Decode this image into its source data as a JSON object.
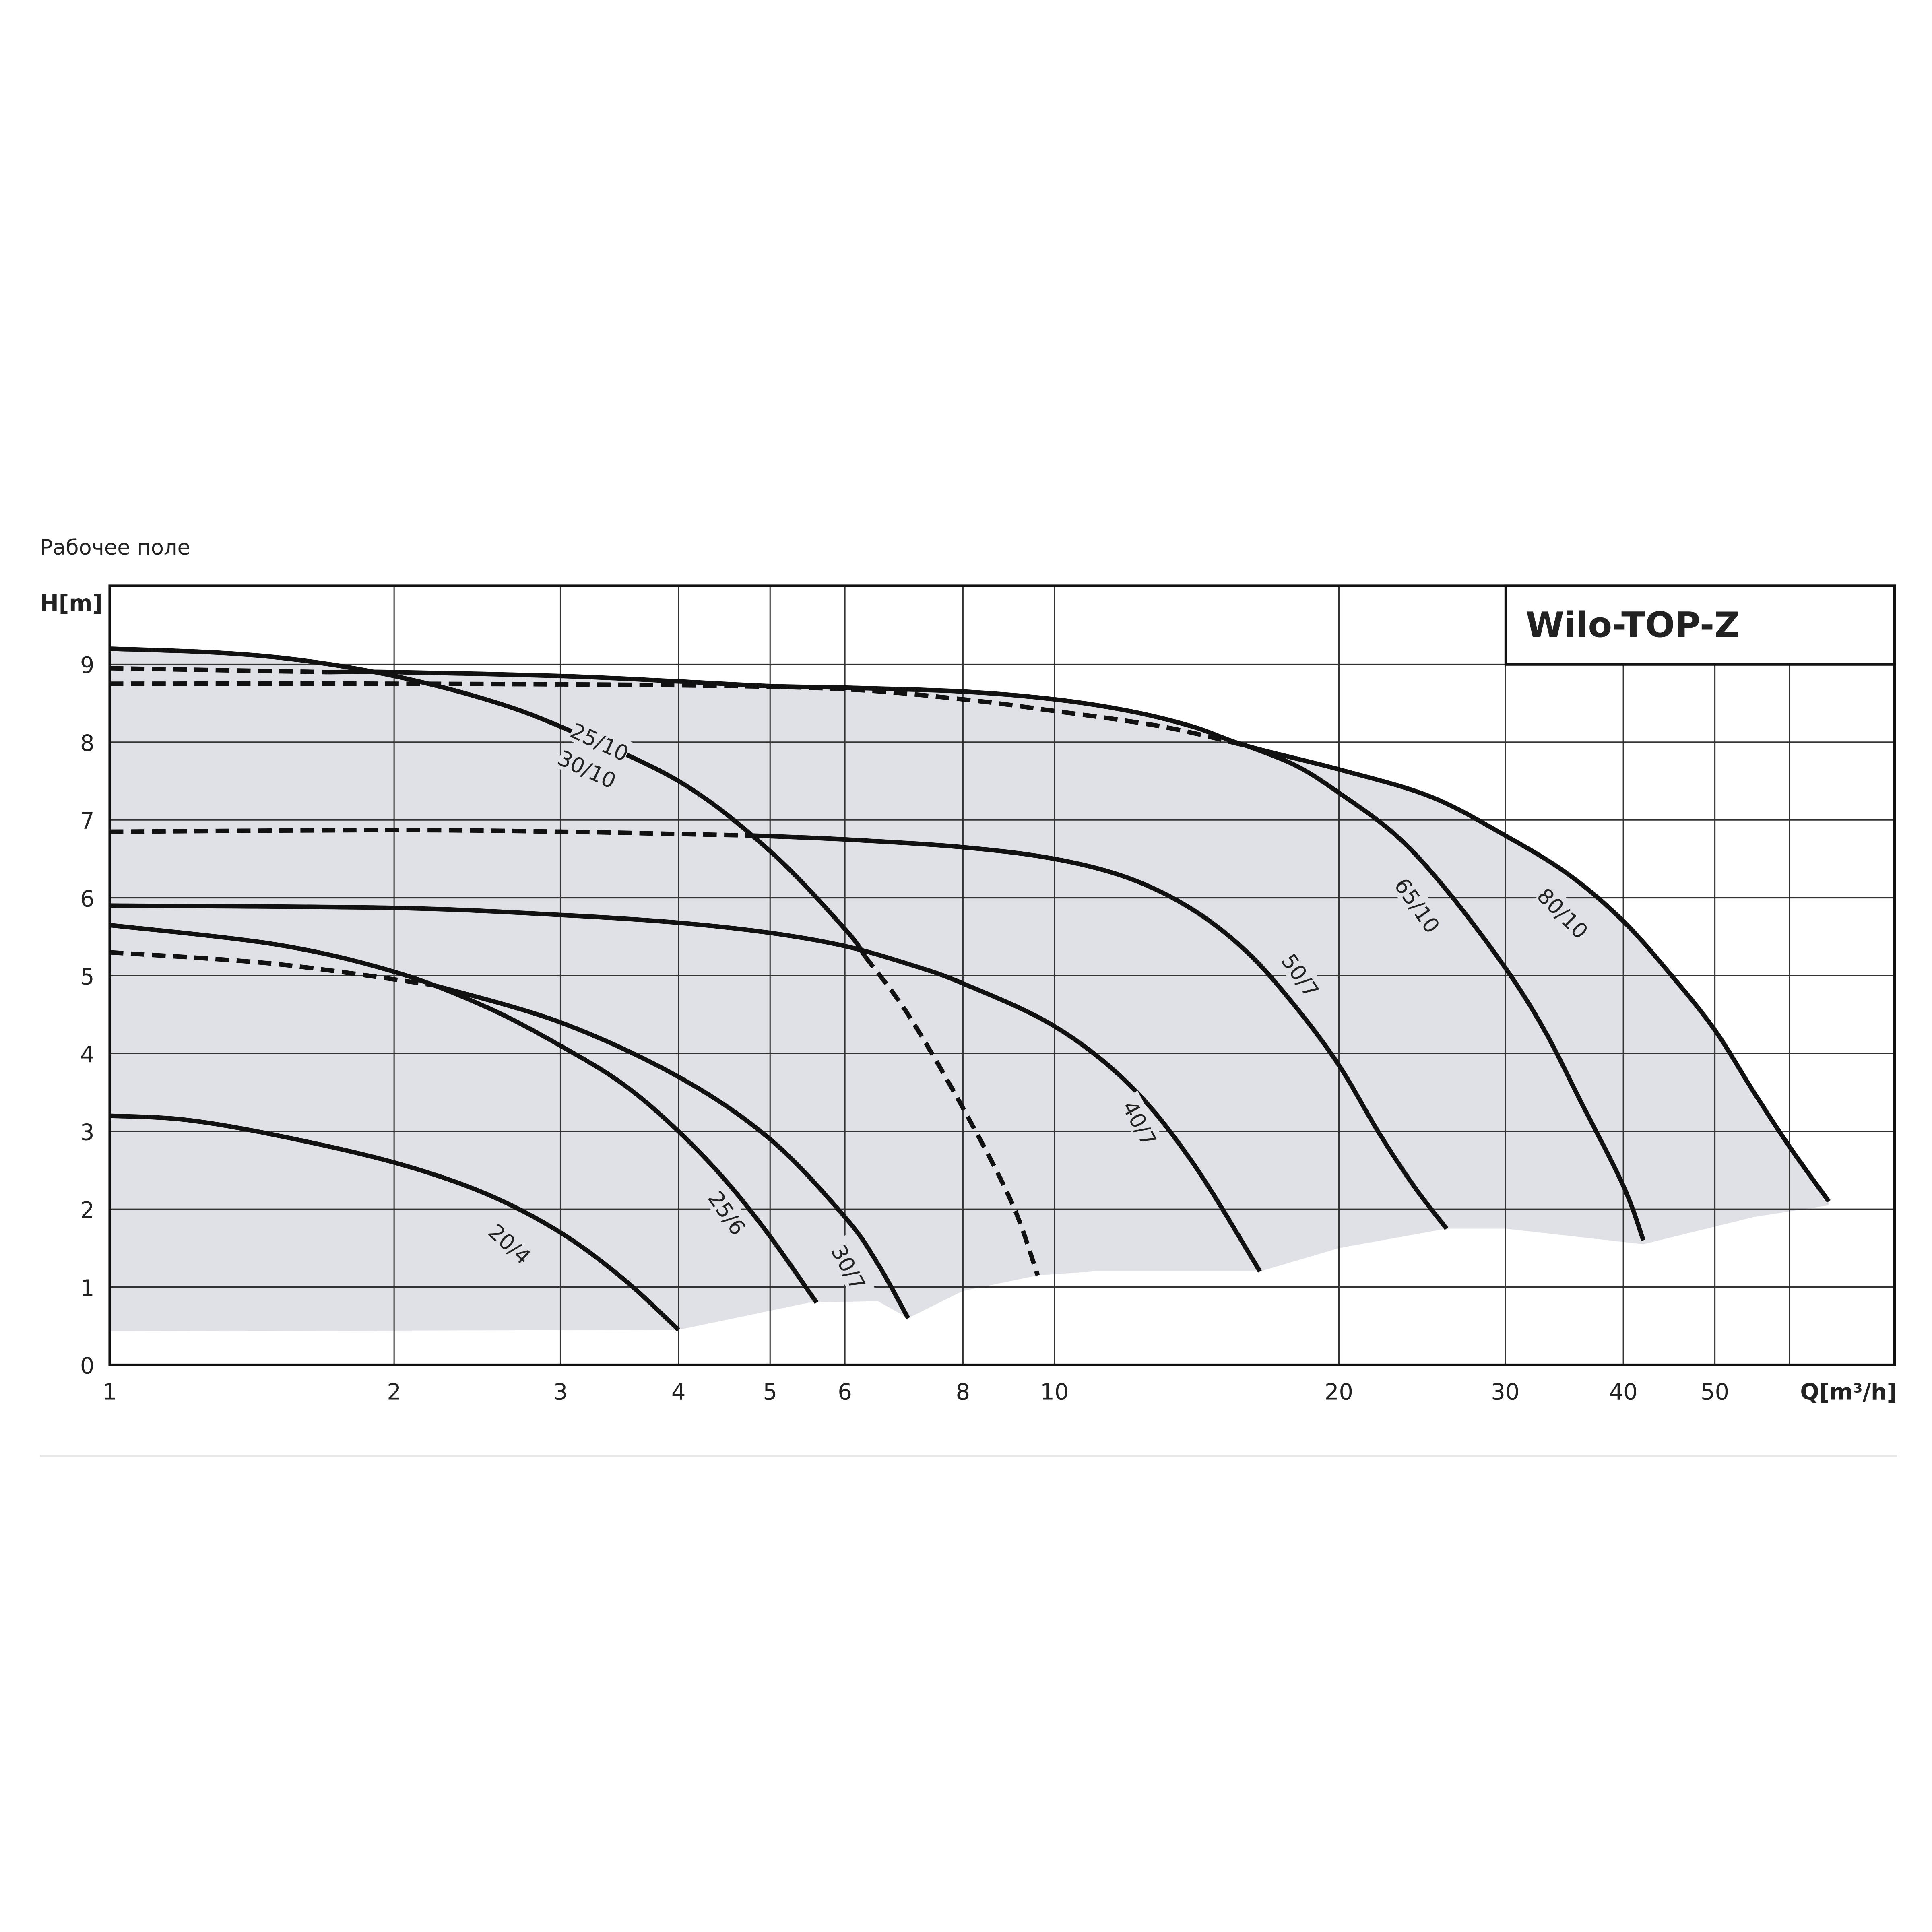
{
  "chart_data": {
    "type": "line",
    "title": "Рабочее поле",
    "legend_title": "Wilo-TOP-Z",
    "xlabel": "Q[m³/h]",
    "ylabel": "H[m]",
    "x_scale": "log",
    "xlim": [
      1,
      77
    ],
    "ylim": [
      0,
      10
    ],
    "grid": true,
    "x_ticks": [
      1,
      2,
      3,
      4,
      5,
      6,
      8,
      10,
      20,
      30,
      40,
      50
    ],
    "x_gridlines": [
      1,
      2,
      3,
      4,
      5,
      6,
      8,
      10,
      20,
      30,
      40,
      50,
      60
    ],
    "y_ticks": [
      0,
      1,
      2,
      3,
      4,
      5,
      6,
      7,
      8,
      9
    ],
    "colors": {
      "curve": "#111111",
      "field": "#dfe1e6",
      "grid": "#333333"
    },
    "field_lower_boundary": [
      [
        1,
        0.43
      ],
      [
        4,
        0.45
      ],
      [
        5.5,
        0.8
      ],
      [
        6.5,
        0.82
      ],
      [
        7,
        0.6
      ],
      [
        8,
        0.95
      ],
      [
        9.6,
        1.15
      ],
      [
        11,
        1.2
      ],
      [
        16.5,
        1.2
      ],
      [
        20,
        1.5
      ],
      [
        26,
        1.75
      ],
      [
        30,
        1.75
      ],
      [
        42,
        1.55
      ],
      [
        55,
        1.9
      ],
      [
        66,
        2.05
      ]
    ],
    "series": [
      {
        "name": "20/4",
        "style": "solid",
        "points": [
          [
            1,
            3.2
          ],
          [
            1.2,
            3.15
          ],
          [
            1.5,
            2.95
          ],
          [
            2,
            2.6
          ],
          [
            2.5,
            2.2
          ],
          [
            3,
            1.7
          ],
          [
            3.5,
            1.1
          ],
          [
            4,
            0.45
          ]
        ]
      },
      {
        "name": "25/6",
        "style": "solid",
        "points": [
          [
            1,
            5.65
          ],
          [
            1.5,
            5.4
          ],
          [
            2,
            5.05
          ],
          [
            2.5,
            4.6
          ],
          [
            3,
            4.1
          ],
          [
            3.5,
            3.6
          ],
          [
            4,
            3.0
          ],
          [
            4.5,
            2.35
          ],
          [
            5,
            1.65
          ],
          [
            5.6,
            0.8
          ]
        ]
      },
      {
        "name": "30/7",
        "style": "solid",
        "points": [
          [
            2.2,
            4.88
          ],
          [
            3,
            4.4
          ],
          [
            4,
            3.7
          ],
          [
            5,
            2.9
          ],
          [
            6,
            1.9
          ],
          [
            6.5,
            1.3
          ],
          [
            7,
            0.6
          ]
        ]
      },
      {
        "name": "30/7 max",
        "style": "dashed",
        "points": [
          [
            1,
            5.3
          ],
          [
            1.5,
            5.15
          ],
          [
            2.2,
            4.88
          ]
        ]
      },
      {
        "name": "40/7",
        "style": "solid",
        "points": [
          [
            1,
            5.9
          ],
          [
            2,
            5.87
          ],
          [
            3,
            5.78
          ],
          [
            4,
            5.68
          ],
          [
            5,
            5.55
          ],
          [
            6,
            5.38
          ],
          [
            7,
            5.15
          ],
          [
            8,
            4.9
          ],
          [
            10,
            4.35
          ],
          [
            12,
            3.6
          ],
          [
            14,
            2.6
          ],
          [
            16.5,
            1.2
          ]
        ]
      },
      {
        "name": "50/7",
        "style": "solid",
        "points": [
          [
            4.8,
            6.8
          ],
          [
            6,
            6.75
          ],
          [
            8,
            6.65
          ],
          [
            10,
            6.5
          ],
          [
            12,
            6.25
          ],
          [
            14,
            5.85
          ],
          [
            16,
            5.3
          ],
          [
            18,
            4.6
          ],
          [
            20,
            3.85
          ],
          [
            22,
            3.0
          ],
          [
            24,
            2.3
          ],
          [
            26,
            1.75
          ]
        ]
      },
      {
        "name": "50/7 max",
        "style": "dashed",
        "points": [
          [
            1,
            6.85
          ],
          [
            2,
            6.87
          ],
          [
            3,
            6.85
          ],
          [
            4,
            6.82
          ],
          [
            4.8,
            6.8
          ]
        ]
      },
      {
        "name": "25/10 30/10",
        "style": "solid",
        "points": [
          [
            1,
            9.2
          ],
          [
            1.3,
            9.15
          ],
          [
            1.6,
            9.05
          ],
          [
            2,
            8.85
          ],
          [
            2.5,
            8.55
          ],
          [
            3,
            8.2
          ],
          [
            4,
            7.5
          ],
          [
            5,
            6.6
          ],
          [
            6,
            5.6
          ],
          [
            6.3,
            5.25
          ]
        ]
      },
      {
        "name": "25/10 30/10 max",
        "style": "dashed",
        "points": [
          [
            6.3,
            5.25
          ],
          [
            7,
            4.5
          ],
          [
            8,
            3.3
          ],
          [
            9,
            2.1
          ],
          [
            9.6,
            1.15
          ]
        ]
      },
      {
        "name": "65/10",
        "style": "solid",
        "points": [
          [
            16,
            7.95
          ],
          [
            18,
            7.7
          ],
          [
            20,
            7.35
          ],
          [
            23,
            6.8
          ],
          [
            26,
            6.1
          ],
          [
            30,
            5.1
          ],
          [
            33,
            4.3
          ],
          [
            36,
            3.4
          ],
          [
            40,
            2.3
          ],
          [
            42,
            1.6
          ]
        ]
      },
      {
        "name": "65/10 max",
        "style": "dashed",
        "points": [
          [
            1,
            8.75
          ],
          [
            2,
            8.75
          ],
          [
            4,
            8.73
          ],
          [
            6,
            8.68
          ],
          [
            8,
            8.55
          ],
          [
            10,
            8.4
          ],
          [
            13,
            8.2
          ],
          [
            16,
            7.95
          ]
        ]
      },
      {
        "name": "80/10",
        "style": "solid",
        "points": [
          [
            1.7,
            8.9
          ],
          [
            2,
            8.9
          ],
          [
            3,
            8.85
          ],
          [
            4,
            8.78
          ],
          [
            5,
            8.72
          ],
          [
            6,
            8.7
          ],
          [
            8,
            8.65
          ],
          [
            10,
            8.55
          ],
          [
            12,
            8.4
          ],
          [
            14,
            8.2
          ],
          [
            16,
            7.95
          ],
          [
            20,
            7.65
          ],
          [
            25,
            7.3
          ],
          [
            30,
            6.8
          ],
          [
            35,
            6.3
          ],
          [
            40,
            5.7
          ],
          [
            45,
            5.0
          ],
          [
            50,
            4.3
          ],
          [
            55,
            3.5
          ],
          [
            60,
            2.8
          ],
          [
            66,
            2.1
          ]
        ]
      },
      {
        "name": "80/10 max",
        "style": "dashed",
        "points": [
          [
            1,
            8.95
          ],
          [
            1.7,
            8.9
          ]
        ]
      }
    ],
    "curve_labels": [
      {
        "text": "25/10",
        "at": [
          3.3,
          8.0
        ],
        "angle": 25
      },
      {
        "text": "30/10",
        "at": [
          3.2,
          7.65
        ],
        "angle": 25
      },
      {
        "text": "20/4",
        "at": [
          2.65,
          1.55
        ],
        "angle": 42
      },
      {
        "text": "25/6",
        "at": [
          4.5,
          1.95
        ],
        "angle": 55
      },
      {
        "text": "30/7",
        "at": [
          6.05,
          1.25
        ],
        "angle": 62
      },
      {
        "text": "40/7",
        "at": [
          12.3,
          3.1
        ],
        "angle": 62
      },
      {
        "text": "50/7",
        "at": [
          18.2,
          5.0
        ],
        "angle": 55
      },
      {
        "text": "65/10",
        "at": [
          24.2,
          5.9
        ],
        "angle": 55
      },
      {
        "text": "80/10",
        "at": [
          34.5,
          5.8
        ],
        "angle": 45
      }
    ]
  }
}
